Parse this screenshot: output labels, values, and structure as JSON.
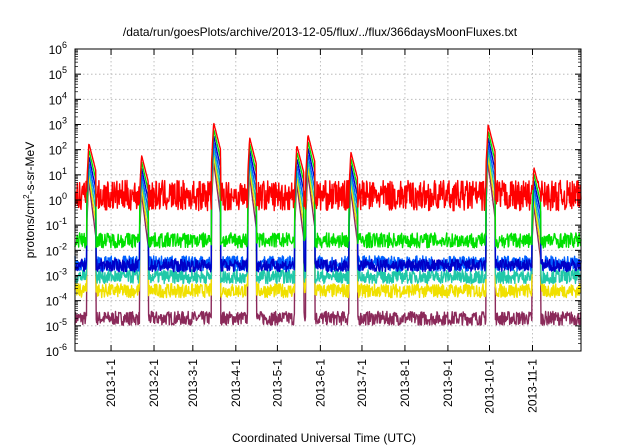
{
  "chart_data": {
    "type": "line",
    "title": "/data/run/goesPlots/archive/2013-12-05/flux/../flux/366daysMoonFluxes.txt",
    "xlabel": "Coordinated Universal Time (UTC)",
    "ylabel_parts": [
      "protons/cm",
      "2",
      "-s-sr-MeV"
    ],
    "yscale": "log",
    "ylim_exp": [
      -6,
      6
    ],
    "xlim": [
      "2012-12-06",
      "2013-12-06"
    ],
    "grid": true,
    "legend": "none",
    "x_ticks": [
      "2013-1-1",
      "2013-2-1",
      "2013-3-1",
      "2013-4-1",
      "2013-5-1",
      "2013-6-1",
      "2013-7-1",
      "2013-8-1",
      "2013-9-1",
      "2013-10-1",
      "2013-11-1"
    ],
    "y_ticks": [
      {
        "base": "10",
        "exp": "-6"
      },
      {
        "base": "10",
        "exp": "-5"
      },
      {
        "base": "10",
        "exp": "-4"
      },
      {
        "base": "10",
        "exp": "-3"
      },
      {
        "base": "10",
        "exp": "-2"
      },
      {
        "base": "10",
        "exp": "-1"
      },
      {
        "base": "10",
        "exp": "0"
      },
      {
        "base": "10",
        "exp": "1"
      },
      {
        "base": "10",
        "exp": "2"
      },
      {
        "base": "10",
        "exp": "3"
      },
      {
        "base": "10",
        "exp": "4"
      },
      {
        "base": "10",
        "exp": "5"
      },
      {
        "base": "10",
        "exp": "6"
      }
    ],
    "series": [
      {
        "color": "#8b2a5a",
        "baseline": 2e-05,
        "noise": 0.55
      },
      {
        "color": "#f0e000",
        "baseline": 0.00025,
        "noise": 0.55
      },
      {
        "color": "#20c8a8",
        "baseline": 0.0009,
        "noise": 0.55
      },
      {
        "color": "#0060ff",
        "baseline": 0.003,
        "noise": 0.6
      },
      {
        "color": "#0000c8",
        "baseline": 0.0025,
        "noise": 0.5
      },
      {
        "color": "#00e000",
        "baseline": 0.025,
        "noise": 0.6
      },
      {
        "color": "#ff0000",
        "baseline": 1.5,
        "noise": 1.2
      }
    ],
    "events": [
      {
        "date": "2012-12-16",
        "peak": 180
      },
      {
        "date": "2013-01-23",
        "peak": 60
      },
      {
        "date": "2013-03-16",
        "peak": 1200
      },
      {
        "date": "2013-04-11",
        "peak": 300
      },
      {
        "date": "2013-05-15",
        "peak": 150
      },
      {
        "date": "2013-05-23",
        "peak": 400
      },
      {
        "date": "2013-06-23",
        "peak": 80
      },
      {
        "date": "2013-09-30",
        "peak": 1000
      },
      {
        "date": "2013-11-02",
        "peak": 20
      }
    ]
  }
}
